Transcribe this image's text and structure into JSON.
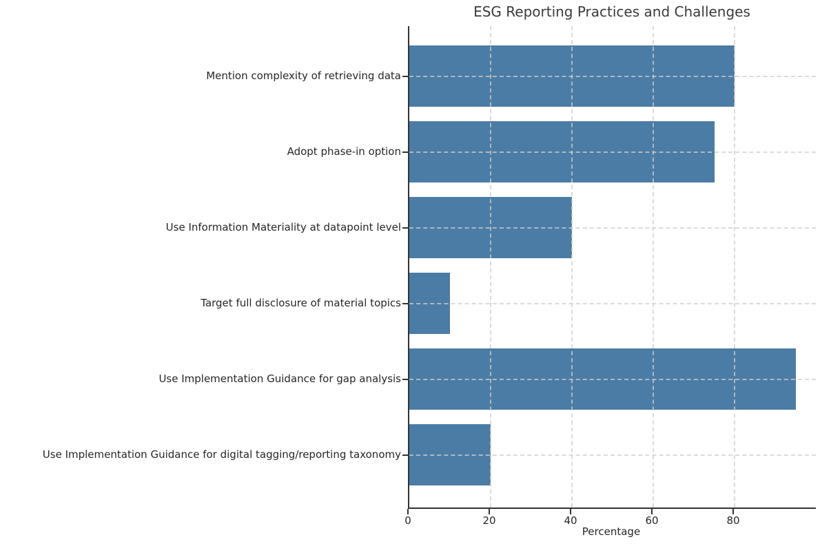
{
  "chart_data": {
    "type": "bar",
    "orientation": "horizontal",
    "title": "ESG Reporting Practices and Challenges",
    "categories": [
      "Mention complexity of retrieving data",
      "Adopt phase-in option",
      "Use Information Materiality at datapoint level",
      "Target full disclosure of material topics",
      "Use Implementation Guidance for gap analysis",
      "Use Implementation Guidance for digital tagging/reporting taxonomy"
    ],
    "values": [
      80,
      75,
      40,
      10,
      95,
      20
    ],
    "xlabel": "Percentage",
    "xlim": [
      0,
      100
    ],
    "xticks": [
      0,
      20,
      40,
      60,
      80
    ],
    "grid": "dashed-both-axes-over-bars",
    "legend_position": "none",
    "bar_color": "#4B7CA5",
    "axis_color": "#333333",
    "grid_color": "#cdcdcd",
    "text_color": "#262626",
    "title_color": "#3a3a3a",
    "background_color": "#ffffff"
  }
}
